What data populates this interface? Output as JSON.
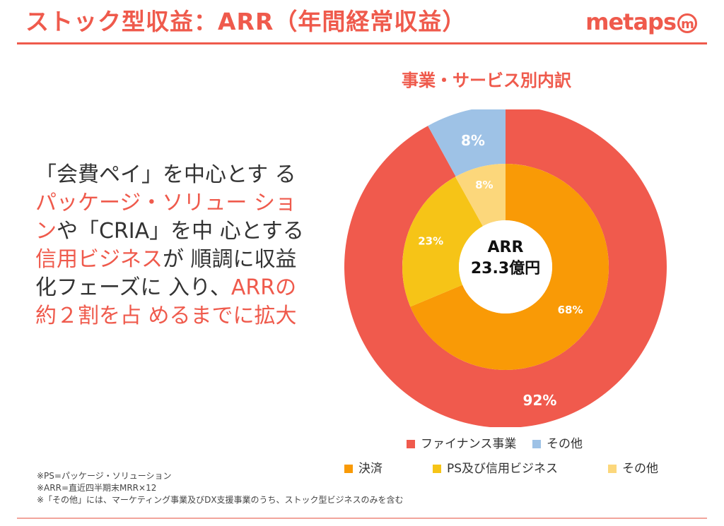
{
  "header": {
    "title": "ストック型収益：ARR（年間経常収益）",
    "logo_text": "metaps",
    "logo_mark": "m"
  },
  "body": {
    "segments": [
      {
        "text": "「会費ペイ」を中心とす",
        "highlight": false
      },
      {
        "text": "る",
        "highlight": false
      },
      {
        "text": "パッケージ・ソリュー",
        "highlight": true
      },
      {
        "text": "ション",
        "highlight": true
      },
      {
        "text": "や「CRIA」を中",
        "highlight": false
      },
      {
        "text": "心とする",
        "highlight": false
      },
      {
        "text": "信用ビジネス",
        "highlight": true
      },
      {
        "text": "が",
        "highlight": false
      },
      {
        "text": "順調に収益化フェーズに",
        "highlight": false
      },
      {
        "text": "入り、",
        "highlight": false
      },
      {
        "text": "ARRの約２割を占",
        "highlight": true
      },
      {
        "text": "めるまでに拡大",
        "highlight": true
      }
    ]
  },
  "chart_data": {
    "type": "pie",
    "title": "事業・サービス別内訳",
    "center_label_line1": "ARR",
    "center_label_line2": "23.3億円",
    "outer": {
      "series": [
        {
          "name": "ファイナンス事業",
          "value": 92,
          "label": "92%",
          "color": "#f05a4d"
        },
        {
          "name": "その他",
          "value": 8,
          "label": "8%",
          "color": "#9ec2e6"
        }
      ]
    },
    "inner": {
      "series": [
        {
          "name": "決済",
          "value": 68,
          "label": "68%",
          "color": "#f99a06"
        },
        {
          "name": "PS及び信用ビジネス",
          "value": 23,
          "label": "23%",
          "color": "#f6c417"
        },
        {
          "name": "その他",
          "value": 8,
          "label": "8%",
          "color": "#fcd77b"
        }
      ]
    },
    "legend": {
      "row1": [
        "ファイナンス事業",
        "その他"
      ],
      "row2": [
        "決済",
        "PS及び信用ビジネス",
        "その他"
      ]
    }
  },
  "notes": [
    "※PS=パッケージ・ソリューション",
    "※ARR=直近四半期末MRR×12",
    "※「その他」には、マーケティング事業及びDX支援事業のうち、ストック型ビジネスのみを含む"
  ]
}
